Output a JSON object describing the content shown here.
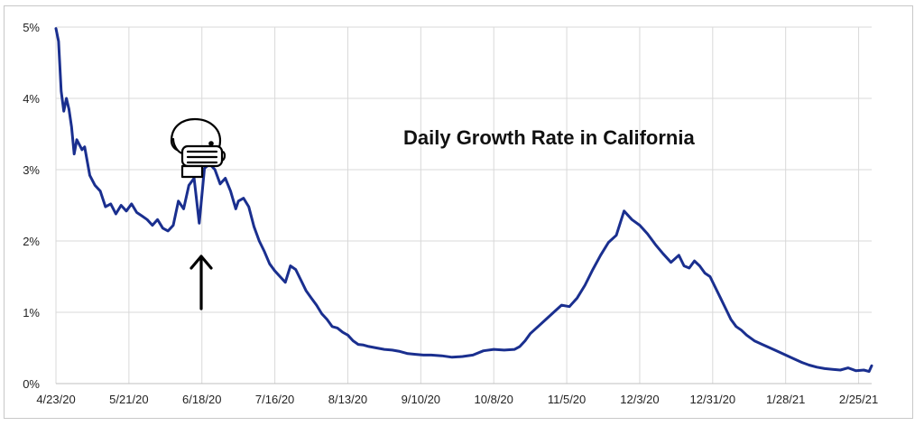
{
  "chart_data": {
    "type": "line",
    "title": "Daily Growth Rate in California",
    "xlabel": "",
    "ylabel": "",
    "x_tick_labels": [
      "4/23/20",
      "5/21/20",
      "6/18/20",
      "7/16/20",
      "8/13/20",
      "9/10/20",
      "10/8/20",
      "11/5/20",
      "12/3/20",
      "12/31/20",
      "1/28/21",
      "2/25/21"
    ],
    "y_tick_labels": [
      "0%",
      "1%",
      "2%",
      "3%",
      "4%",
      "5%"
    ],
    "ylim": [
      0,
      5
    ],
    "xlim": [
      "2020-04-23",
      "2021-03-02"
    ],
    "grid": true,
    "legend": "none",
    "line_color": "#1a2f8f",
    "annotations": [
      {
        "kind": "face-mask-icon",
        "date": "2020-06-18"
      },
      {
        "kind": "up-arrow",
        "date": "2020-06-18"
      }
    ],
    "series": [
      {
        "x": [
          "2020-04-23",
          "2020-04-24",
          "2020-04-25",
          "2020-04-26",
          "2020-04-27",
          "2020-04-28",
          "2020-04-29",
          "2020-04-30",
          "2020-05-01",
          "2020-05-02",
          "2020-05-03",
          "2020-05-04",
          "2020-05-06",
          "2020-05-08",
          "2020-05-10",
          "2020-05-12",
          "2020-05-14",
          "2020-05-16",
          "2020-05-18",
          "2020-05-20",
          "2020-05-22",
          "2020-05-24",
          "2020-05-26",
          "2020-05-28",
          "2020-05-30",
          "2020-06-01",
          "2020-06-03",
          "2020-06-05",
          "2020-06-07",
          "2020-06-09",
          "2020-06-11",
          "2020-06-13",
          "2020-06-15",
          "2020-06-17",
          "2020-06-19",
          "2020-06-21",
          "2020-06-23",
          "2020-06-25",
          "2020-06-27",
          "2020-06-29",
          "2020-07-01",
          "2020-07-02",
          "2020-07-04",
          "2020-07-06",
          "2020-07-08",
          "2020-07-10",
          "2020-07-12",
          "2020-07-14",
          "2020-07-16",
          "2020-07-18",
          "2020-07-20",
          "2020-07-22",
          "2020-07-24",
          "2020-07-26",
          "2020-07-28",
          "2020-07-30",
          "2020-08-01",
          "2020-08-03",
          "2020-08-05",
          "2020-08-07",
          "2020-08-09",
          "2020-08-11",
          "2020-08-13",
          "2020-08-15",
          "2020-08-17",
          "2020-08-19",
          "2020-08-21",
          "2020-08-24",
          "2020-08-27",
          "2020-08-30",
          "2020-09-02",
          "2020-09-05",
          "2020-09-08",
          "2020-09-11",
          "2020-09-14",
          "2020-09-18",
          "2020-09-22",
          "2020-09-26",
          "2020-09-30",
          "2020-10-04",
          "2020-10-08",
          "2020-10-12",
          "2020-10-16",
          "2020-10-18",
          "2020-10-20",
          "2020-10-22",
          "2020-10-25",
          "2020-10-28",
          "2020-10-31",
          "2020-11-03",
          "2020-11-06",
          "2020-11-09",
          "2020-11-12",
          "2020-11-15",
          "2020-11-18",
          "2020-11-21",
          "2020-11-24",
          "2020-11-27",
          "2020-11-30",
          "2020-12-03",
          "2020-12-06",
          "2020-12-09",
          "2020-12-12",
          "2020-12-15",
          "2020-12-18",
          "2020-12-20",
          "2020-12-22",
          "2020-12-24",
          "2020-12-26",
          "2020-12-28",
          "2020-12-30",
          "2021-01-01",
          "2021-01-03",
          "2021-01-05",
          "2021-01-07",
          "2021-01-09",
          "2021-01-11",
          "2021-01-13",
          "2021-01-16",
          "2021-01-19",
          "2021-01-22",
          "2021-01-25",
          "2021-01-28",
          "2021-01-31",
          "2021-02-03",
          "2021-02-06",
          "2021-02-09",
          "2021-02-12",
          "2021-02-15",
          "2021-02-18",
          "2021-02-21",
          "2021-02-24",
          "2021-02-27",
          "2021-03-01",
          "2021-03-02"
        ],
        "y": [
          4.98,
          4.8,
          4.1,
          3.82,
          4.0,
          3.85,
          3.6,
          3.22,
          3.42,
          3.35,
          3.28,
          3.32,
          2.92,
          2.78,
          2.7,
          2.48,
          2.52,
          2.38,
          2.5,
          2.42,
          2.52,
          2.4,
          2.35,
          2.3,
          2.22,
          2.3,
          2.18,
          2.14,
          2.22,
          2.56,
          2.45,
          2.78,
          2.88,
          2.25,
          3.02,
          3.08,
          3.0,
          2.8,
          2.88,
          2.7,
          2.45,
          2.56,
          2.6,
          2.48,
          2.2,
          2.0,
          1.85,
          1.68,
          1.58,
          1.5,
          1.42,
          1.65,
          1.6,
          1.45,
          1.3,
          1.2,
          1.1,
          0.98,
          0.9,
          0.8,
          0.78,
          0.72,
          0.68,
          0.6,
          0.55,
          0.54,
          0.52,
          0.5,
          0.48,
          0.47,
          0.45,
          0.42,
          0.41,
          0.4,
          0.4,
          0.39,
          0.37,
          0.38,
          0.4,
          0.46,
          0.48,
          0.47,
          0.48,
          0.52,
          0.6,
          0.7,
          0.8,
          0.9,
          1.0,
          1.1,
          1.08,
          1.2,
          1.38,
          1.6,
          1.8,
          1.98,
          2.08,
          2.42,
          2.3,
          2.22,
          2.1,
          1.95,
          1.82,
          1.7,
          1.8,
          1.65,
          1.62,
          1.72,
          1.65,
          1.55,
          1.5,
          1.35,
          1.2,
          1.05,
          0.9,
          0.8,
          0.75,
          0.68,
          0.6,
          0.55,
          0.5,
          0.45,
          0.4,
          0.35,
          0.3,
          0.26,
          0.23,
          0.21,
          0.2,
          0.19,
          0.22,
          0.18,
          0.19,
          0.17,
          0.25
        ]
      }
    ]
  }
}
